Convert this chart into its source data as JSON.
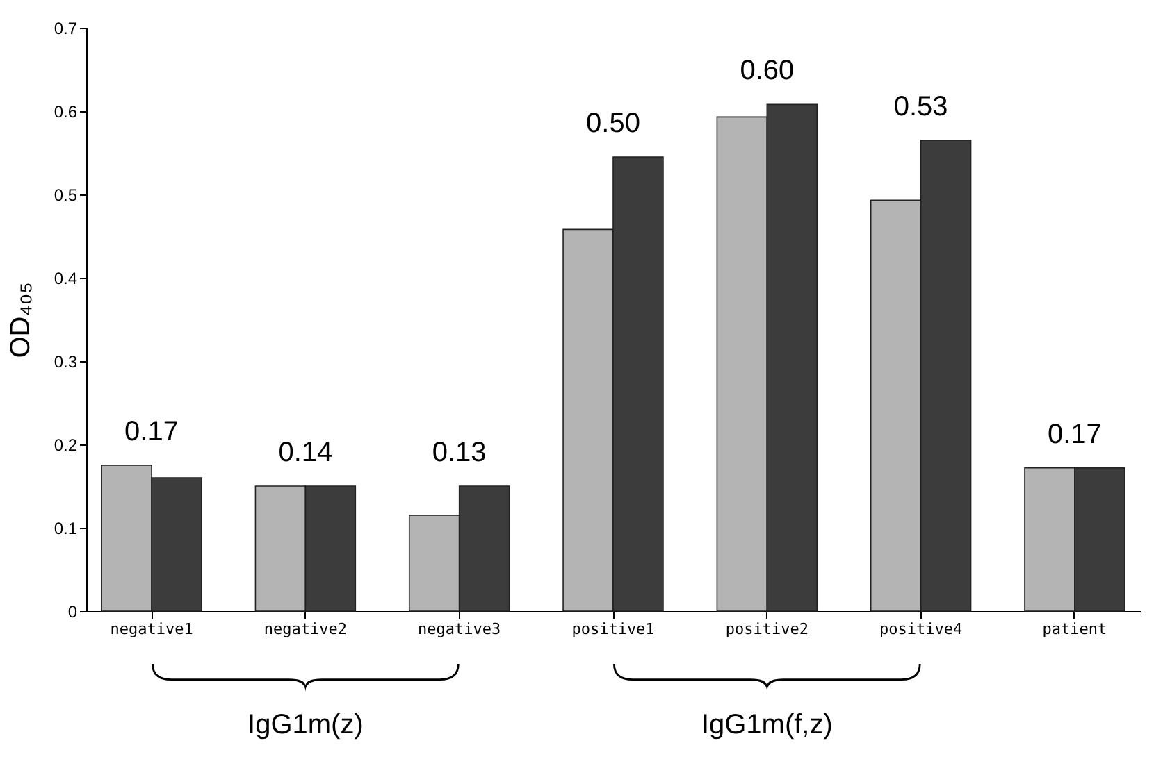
{
  "chart_data": {
    "type": "bar",
    "ylabel": "OD₄₀₅",
    "categories": [
      "negative1",
      "negative2",
      "negative3",
      "positive1",
      "positive2",
      "positive4",
      "patient"
    ],
    "series": [
      {
        "color": "#b4b4b4",
        "values": [
          0.175,
          0.15,
          0.115,
          0.458,
          0.593,
          0.493,
          0.172
        ]
      },
      {
        "color": "#3c3c3c",
        "values": [
          0.16,
          0.15,
          0.15,
          0.545,
          0.608,
          0.565,
          0.172
        ]
      }
    ],
    "ylim": [
      0,
      0.7
    ],
    "yticks": [
      0,
      0.1,
      0.2,
      0.3,
      0.4,
      0.5,
      0.6,
      0.7
    ],
    "grid": false,
    "legend": false,
    "annotations": [
      "0.17",
      "0.14",
      "0.13",
      "0.50",
      "0.60",
      "0.53",
      "0.17",
      "IgG1m(z)",
      "IgG1m(f,z)"
    ]
  }
}
